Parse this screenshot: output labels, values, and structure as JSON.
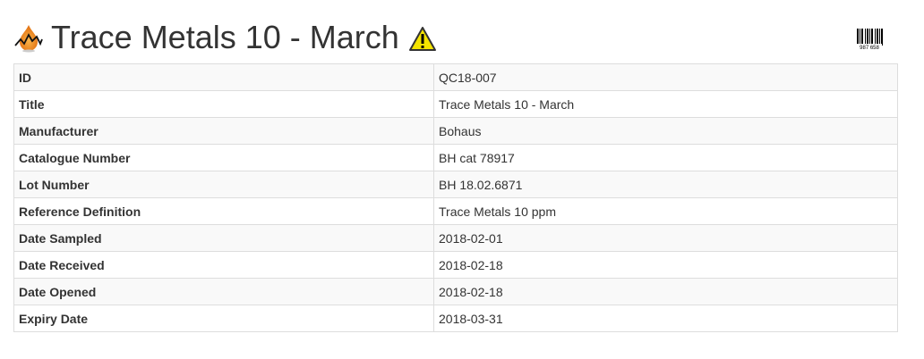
{
  "header": {
    "title": "Trace Metals 10 - March",
    "logo_icon": "flame-chart-icon",
    "status_icon": "warning-icon",
    "barcode_icon": "barcode-icon",
    "barcode_text": "987 658"
  },
  "colors": {
    "warning": "#f4e400",
    "logo": "#f08a1a"
  },
  "rows": [
    {
      "label": "ID",
      "value": "QC18-007"
    },
    {
      "label": "Title",
      "value": "Trace Metals 10 - March"
    },
    {
      "label": "Manufacturer",
      "value": "Bohaus"
    },
    {
      "label": "Catalogue Number",
      "value": "BH cat 78917"
    },
    {
      "label": "Lot Number",
      "value": "BH 18.02.6871"
    },
    {
      "label": "Reference Definition",
      "value": "Trace Metals 10 ppm"
    },
    {
      "label": "Date Sampled",
      "value": "2018-02-01"
    },
    {
      "label": "Date Received",
      "value": "2018-02-18"
    },
    {
      "label": "Date Opened",
      "value": "2018-02-18"
    },
    {
      "label": "Expiry Date",
      "value": "2018-03-31"
    }
  ]
}
